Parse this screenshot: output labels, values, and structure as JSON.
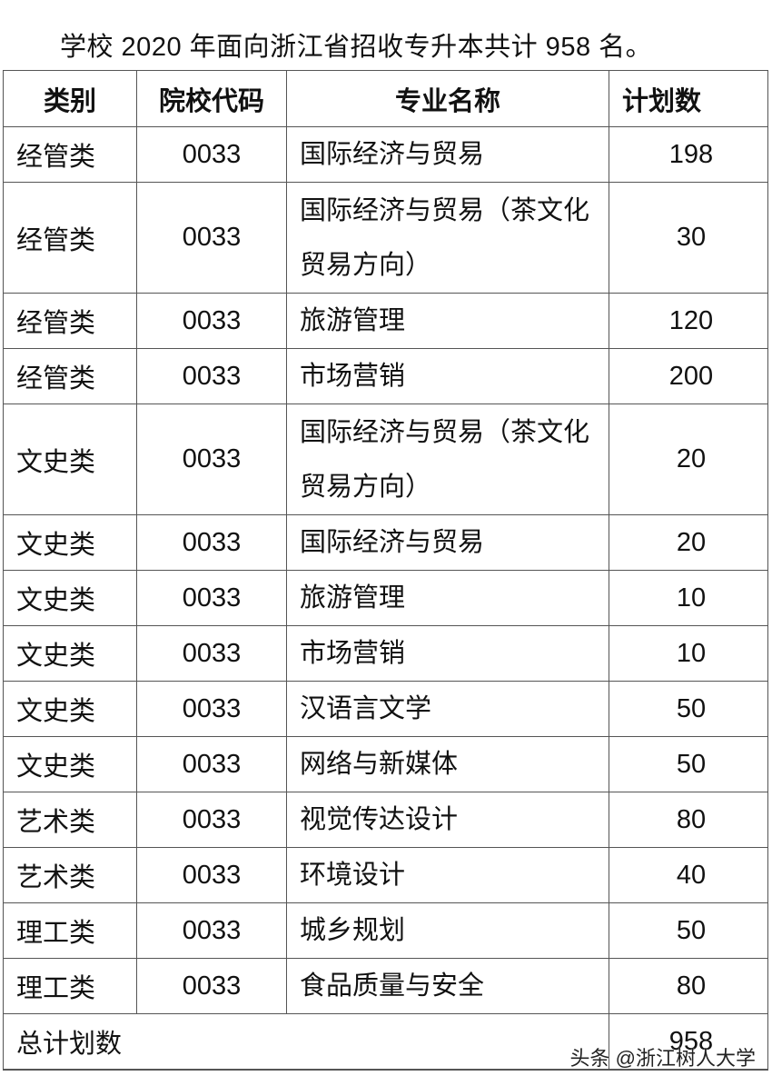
{
  "intro": "学校 2020 年面向浙江省招收专升本共计 958 名。",
  "headers": [
    "类别",
    "院校代码",
    "专业名称",
    "计划数"
  ],
  "rows": [
    {
      "category": "经管类",
      "code": "0033",
      "major": "国际经济与贸易",
      "plan": "198"
    },
    {
      "category": "经管类",
      "code": "0033",
      "major": "国际经济与贸易（茶文化贸易方向）",
      "plan": "30"
    },
    {
      "category": "经管类",
      "code": "0033",
      "major": "旅游管理",
      "plan": "120"
    },
    {
      "category": "经管类",
      "code": "0033",
      "major": "市场营销",
      "plan": "200"
    },
    {
      "category": "文史类",
      "code": "0033",
      "major": "国际经济与贸易（茶文化贸易方向）",
      "plan": "20"
    },
    {
      "category": "文史类",
      "code": "0033",
      "major": "国际经济与贸易",
      "plan": "20"
    },
    {
      "category": "文史类",
      "code": "0033",
      "major": "旅游管理",
      "plan": "10"
    },
    {
      "category": "文史类",
      "code": "0033",
      "major": "市场营销",
      "plan": "10"
    },
    {
      "category": "文史类",
      "code": "0033",
      "major": "汉语言文学",
      "plan": "50"
    },
    {
      "category": "文史类",
      "code": "0033",
      "major": "网络与新媒体",
      "plan": "50"
    },
    {
      "category": "艺术类",
      "code": "0033",
      "major": "视觉传达设计",
      "plan": "80"
    },
    {
      "category": "艺术类",
      "code": "0033",
      "major": "环境设计",
      "plan": "40"
    },
    {
      "category": "理工类",
      "code": "0033",
      "major": "城乡规划",
      "plan": "50"
    },
    {
      "category": "理工类",
      "code": "0033",
      "major": "食品质量与安全",
      "plan": "80"
    }
  ],
  "total": {
    "label": "总计划数",
    "value": "958"
  },
  "watermark": "头条 @浙江树人大学"
}
